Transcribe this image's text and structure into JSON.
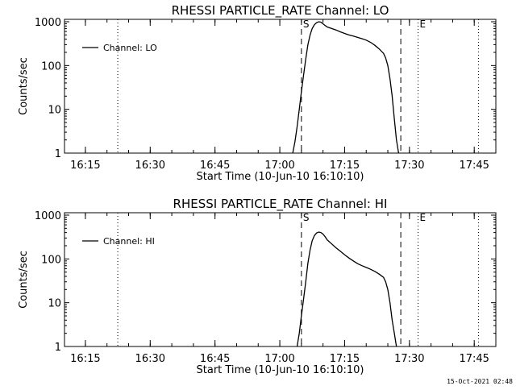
{
  "footer_stamp": "15-Oct-2021 02:48",
  "chart_data": [
    {
      "type": "line",
      "title": "RHESSI PARTICLE_RATE Channel: LO",
      "xlabel": "Start Time (10-Jun-10 16:10:10)",
      "ylabel": "Counts/sec",
      "y_scale": "log",
      "ylim": [
        1,
        1000
      ],
      "xlim": [
        "16:10:10",
        "17:50:00"
      ],
      "x_ticks": [
        "16:15",
        "16:30",
        "16:45",
        "17:00",
        "17:15",
        "17:30",
        "17:45"
      ],
      "y_ticks": [
        "1",
        "10",
        "100",
        "1000"
      ],
      "legend": {
        "placement": "top-left",
        "entries": [
          "Channel: LO"
        ]
      },
      "markers": [
        {
          "label": "S",
          "time": "17:05:00",
          "style": "dashed"
        },
        {
          "label": "",
          "time": "17:28:00",
          "style": "dashed"
        },
        {
          "label": "",
          "time": "16:22:30",
          "style": "dotted"
        },
        {
          "label": "E",
          "time": "17:32:00",
          "style": "dotted"
        },
        {
          "label": "",
          "time": "17:46:00",
          "style": "dotted"
        }
      ],
      "series": [
        {
          "name": "Channel: LO",
          "x": [
            "17:03:00",
            "17:03:30",
            "17:04:00",
            "17:04:30",
            "17:05:00",
            "17:05:30",
            "17:06:00",
            "17:06:30",
            "17:07:00",
            "17:07:30",
            "17:08:00",
            "17:08:30",
            "17:09:00",
            "17:09:30",
            "17:10:00",
            "17:10:30",
            "17:11:00",
            "17:12:00",
            "17:13:00",
            "17:14:00",
            "17:15:00",
            "17:16:00",
            "17:17:00",
            "17:18:00",
            "17:19:00",
            "17:20:00",
            "17:21:00",
            "17:22:00",
            "17:23:00",
            "17:24:00",
            "17:24:30",
            "17:25:00",
            "17:25:30",
            "17:26:00",
            "17:26:30",
            "17:27:00",
            "17:27:30"
          ],
          "y": [
            1,
            1.8,
            4,
            10,
            25,
            60,
            140,
            300,
            500,
            700,
            850,
            950,
            1000,
            980,
            900,
            820,
            760,
            700,
            650,
            590,
            540,
            500,
            470,
            440,
            410,
            380,
            340,
            290,
            240,
            190,
            150,
            100,
            50,
            20,
            6,
            2,
            1
          ]
        }
      ]
    },
    {
      "type": "line",
      "title": "RHESSI PARTICLE_RATE Channel: HI",
      "xlabel": "Start Time (10-Jun-10 16:10:10)",
      "ylabel": "Counts/sec",
      "y_scale": "log",
      "ylim": [
        1,
        1000
      ],
      "xlim": [
        "16:10:10",
        "17:50:00"
      ],
      "x_ticks": [
        "16:15",
        "16:30",
        "16:45",
        "17:00",
        "17:15",
        "17:30",
        "17:45"
      ],
      "y_ticks": [
        "1",
        "10",
        "100",
        "1000"
      ],
      "legend": {
        "placement": "top-left",
        "entries": [
          "Channel: HI"
        ]
      },
      "markers": [
        {
          "label": "S",
          "time": "17:05:00",
          "style": "dashed"
        },
        {
          "label": "",
          "time": "17:28:00",
          "style": "dashed"
        },
        {
          "label": "",
          "time": "16:22:30",
          "style": "dotted"
        },
        {
          "label": "E",
          "time": "17:32:00",
          "style": "dotted"
        },
        {
          "label": "",
          "time": "17:46:00",
          "style": "dotted"
        }
      ],
      "series": [
        {
          "name": "Channel: HI",
          "x": [
            "17:04:00",
            "17:04:30",
            "17:05:00",
            "17:05:30",
            "17:06:00",
            "17:06:30",
            "17:07:00",
            "17:07:30",
            "17:08:00",
            "17:08:30",
            "17:09:00",
            "17:09:30",
            "17:10:00",
            "17:10:30",
            "17:11:00",
            "17:12:00",
            "17:13:00",
            "17:14:00",
            "17:15:00",
            "17:16:00",
            "17:17:00",
            "17:18:00",
            "17:19:00",
            "17:20:00",
            "17:21:00",
            "17:22:00",
            "17:23:00",
            "17:24:00",
            "17:24:30",
            "17:25:00",
            "17:25:30",
            "17:26:00",
            "17:26:30",
            "17:27:00"
          ],
          "y": [
            1,
            2,
            5,
            12,
            30,
            80,
            160,
            260,
            340,
            390,
            410,
            400,
            370,
            320,
            270,
            220,
            180,
            150,
            125,
            105,
            90,
            78,
            70,
            64,
            58,
            52,
            45,
            38,
            30,
            20,
            10,
            4,
            2,
            1
          ]
        }
      ]
    }
  ]
}
